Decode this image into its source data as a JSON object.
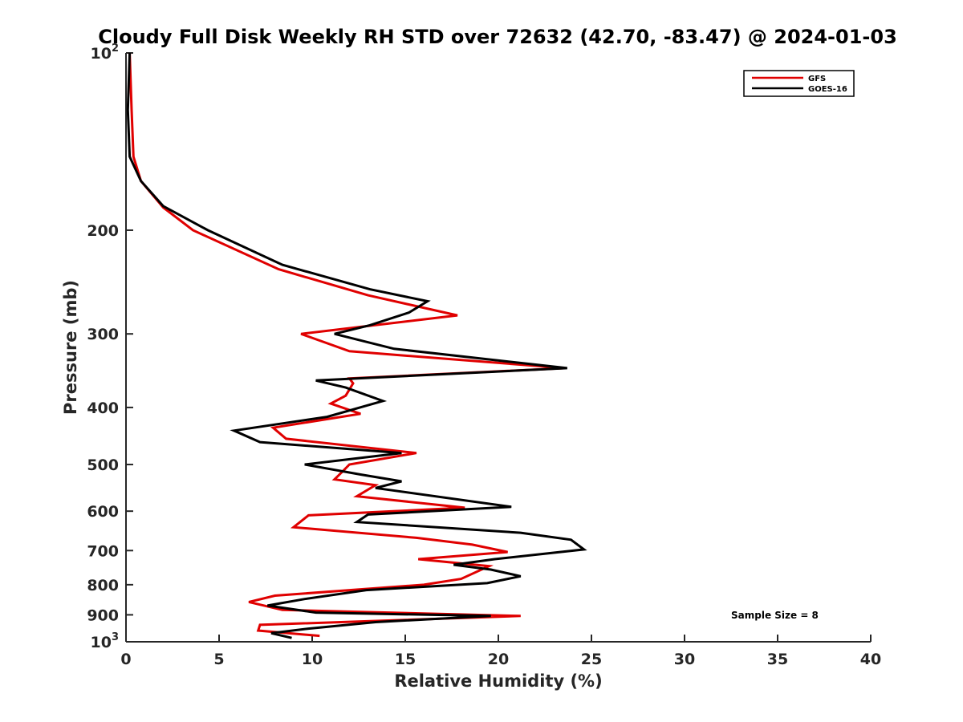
{
  "chart_data": {
    "type": "line",
    "title": "Cloudy Full Disk Weekly RH STD over 72632 (42.70, -83.47) @ 2024-01-03",
    "xlabel": "Relative Humidity (%)",
    "ylabel": "Pressure (mb)",
    "xlim": [
      0,
      40
    ],
    "ylim": [
      100,
      1000
    ],
    "y_scale": "log",
    "y_reversed": true,
    "grid": false,
    "legend_position": "top-right",
    "x_ticks": [
      "0",
      "5",
      "10",
      "15",
      "20",
      "25",
      "30",
      "35",
      "40"
    ],
    "y_ticks": [
      {
        "value": 100,
        "base": "10",
        "exp": "2"
      },
      {
        "value": 200,
        "label": "200"
      },
      {
        "value": 300,
        "label": "300"
      },
      {
        "value": 400,
        "label": "400"
      },
      {
        "value": 500,
        "label": "500"
      },
      {
        "value": 600,
        "label": "600"
      },
      {
        "value": 700,
        "label": "700"
      },
      {
        "value": 800,
        "label": "800"
      },
      {
        "value": 900,
        "label": "900"
      },
      {
        "value": 1000,
        "base": "10",
        "exp": "3"
      }
    ],
    "series": [
      {
        "name": "GFS",
        "color": "#e00000",
        "points": [
          [
            0.2,
            100
          ],
          [
            0.3,
            125
          ],
          [
            0.4,
            150
          ],
          [
            0.8,
            165
          ],
          [
            2.0,
            183
          ],
          [
            3.6,
            200
          ],
          [
            8.2,
            233
          ],
          [
            13.0,
            258
          ],
          [
            17.8,
            279
          ],
          [
            9.4,
            300
          ],
          [
            12.0,
            321
          ],
          [
            23.6,
            343
          ],
          [
            12.0,
            357
          ],
          [
            12.2,
            364
          ],
          [
            11.8,
            382
          ],
          [
            11.0,
            394
          ],
          [
            12.6,
            410
          ],
          [
            7.9,
            433
          ],
          [
            8.6,
            452
          ],
          [
            15.6,
            478
          ],
          [
            12.0,
            500
          ],
          [
            11.6,
            515
          ],
          [
            11.2,
            530
          ],
          [
            13.4,
            542
          ],
          [
            12.4,
            566
          ],
          [
            18.2,
            592
          ],
          [
            9.8,
            610
          ],
          [
            9.0,
            639
          ],
          [
            15.6,
            666
          ],
          [
            18.6,
            684
          ],
          [
            20.5,
            704
          ],
          [
            15.7,
            724
          ],
          [
            19.5,
            744
          ],
          [
            18.0,
            782
          ],
          [
            16.0,
            800
          ],
          [
            8.0,
            835
          ],
          [
            6.6,
            856
          ],
          [
            8.4,
            883
          ],
          [
            21.2,
            904
          ],
          [
            7.2,
            936
          ],
          [
            7.1,
            957
          ],
          [
            10.4,
            977
          ]
        ]
      },
      {
        "name": "GOES-16",
        "color": "#000000",
        "points": [
          [
            0.2,
            100
          ],
          [
            0.1,
            125
          ],
          [
            0.2,
            150
          ],
          [
            0.8,
            165
          ],
          [
            2.0,
            182
          ],
          [
            4.4,
            200
          ],
          [
            8.4,
            229
          ],
          [
            13.1,
            252
          ],
          [
            16.2,
            264
          ],
          [
            15.2,
            276
          ],
          [
            13.1,
            290
          ],
          [
            11.2,
            300
          ],
          [
            14.4,
            318
          ],
          [
            23.7,
            343
          ],
          [
            10.2,
            360
          ],
          [
            11.8,
            370
          ],
          [
            13.8,
            390
          ],
          [
            10.8,
            415
          ],
          [
            5.8,
            438
          ],
          [
            7.2,
            458
          ],
          [
            14.8,
            478
          ],
          [
            9.6,
            500
          ],
          [
            12.6,
            520
          ],
          [
            14.8,
            534
          ],
          [
            13.4,
            548
          ],
          [
            20.7,
            590
          ],
          [
            13.0,
            608
          ],
          [
            12.4,
            626
          ],
          [
            21.2,
            653
          ],
          [
            23.9,
            671
          ],
          [
            24.6,
            697
          ],
          [
            19.8,
            724
          ],
          [
            17.6,
            740
          ],
          [
            19.6,
            754
          ],
          [
            21.2,
            774
          ],
          [
            19.4,
            795
          ],
          [
            12.9,
            817
          ],
          [
            9.6,
            846
          ],
          [
            7.6,
            868
          ],
          [
            10.2,
            892
          ],
          [
            19.6,
            904
          ],
          [
            13.4,
            926
          ],
          [
            9.8,
            950
          ],
          [
            7.8,
            967
          ],
          [
            8.9,
            985
          ]
        ]
      }
    ],
    "annotations": [
      "Sample Size = 8"
    ]
  }
}
